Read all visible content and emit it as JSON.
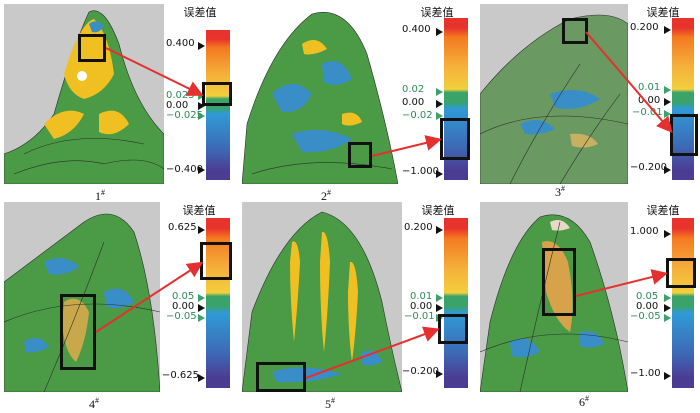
{
  "colors": {
    "surface_green": "#4a9a46",
    "highlight_yellow": "#f0c022",
    "deviation_blue": "#3a8ec8",
    "arrow_red": "#e53030",
    "box_black": "#111111",
    "scale_gradient": [
      "#e8322c",
      "#f47a20",
      "#f5b13a",
      "#f2cf3c",
      "#3aa36a",
      "#2f9bd6",
      "#3d68b4",
      "#4b3c93"
    ]
  },
  "panels": [
    {
      "caption": "1",
      "caption_mark": "#",
      "scale_title": "误差值",
      "labels": [
        "0.400",
        "0.025",
        "0.00",
        "−0.025",
        "−0.400"
      ]
    },
    {
      "caption": "2",
      "caption_mark": "#",
      "scale_title": "误差值",
      "labels": [
        "0.400",
        "0.02",
        "0.00",
        "−0.02",
        "−1.000"
      ]
    },
    {
      "caption": "3",
      "caption_mark": "#",
      "scale_title": "误差值",
      "labels": [
        "0.200",
        "0.01",
        "0.00",
        "−0.01",
        "−0.200"
      ]
    },
    {
      "caption": "4",
      "caption_mark": "#",
      "scale_title": "误差值",
      "labels": [
        "0.625",
        "0.05",
        "0.00",
        "−0.05",
        "−0.625"
      ]
    },
    {
      "caption": "5",
      "caption_mark": "#",
      "scale_title": "误差值",
      "labels": [
        "0.200",
        "0.01",
        "0.00",
        "−0.01",
        "−0.200"
      ]
    },
    {
      "caption": "6",
      "caption_mark": "#",
      "scale_title": "误差值",
      "labels": [
        "1.000",
        "0.05",
        "0.00",
        "−0.05",
        "−1.00"
      ]
    }
  ]
}
